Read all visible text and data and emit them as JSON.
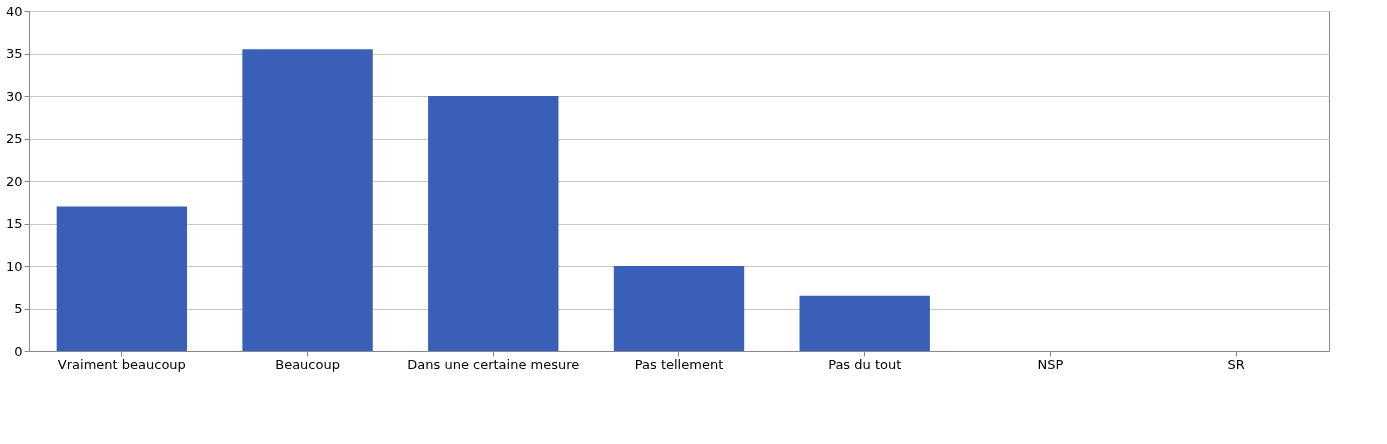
{
  "chart_data": {
    "type": "bar",
    "categories": [
      "Vraiment beaucoup",
      "Beaucoup",
      "Dans une certaine mesure",
      "Pas tellement",
      "Pas du tout",
      "NSP",
      "SR"
    ],
    "values": [
      17,
      35.5,
      30,
      10,
      6.5,
      0,
      0
    ],
    "color": "#3a5fb8",
    "ylim": [
      0,
      40
    ],
    "yticks": [
      0,
      5,
      10,
      15,
      20,
      25,
      30,
      35,
      40
    ],
    "grid": "y"
  }
}
